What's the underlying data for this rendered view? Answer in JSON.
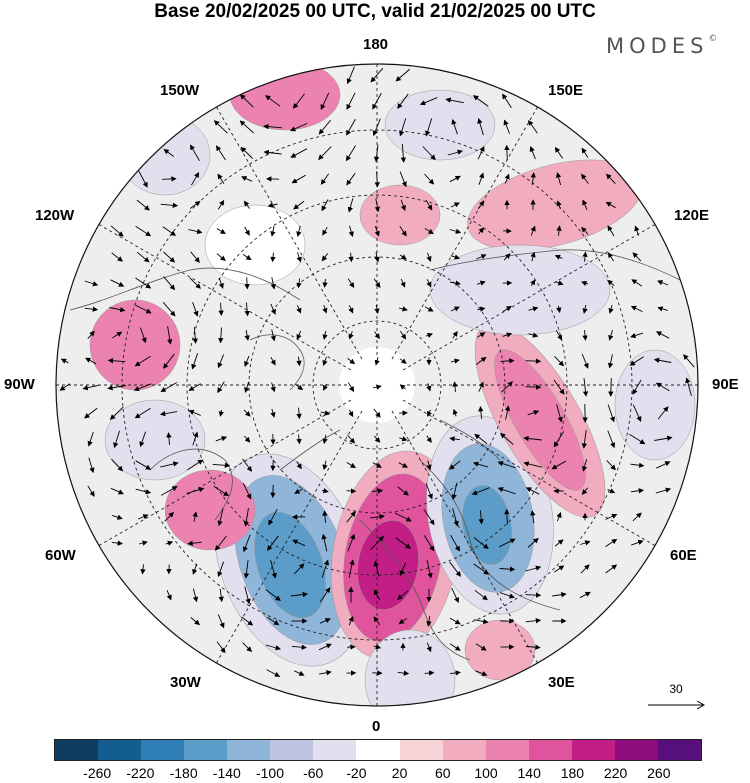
{
  "header": {
    "title": "Base 20/02/2025 00 UTC, valid 21/02/2025 00 UTC",
    "brand": "MODES",
    "brand_mark": "©"
  },
  "map": {
    "projection": "north-polar-stereographic",
    "longitude_labels": {
      "top": "180",
      "bottom": "0",
      "left": "90W",
      "right": "90E",
      "upper_left_1": "150W",
      "upper_left_2": "120W",
      "upper_right_1": "150E",
      "upper_right_2": "120E",
      "lower_left_1": "60W",
      "lower_left_2": "30W",
      "lower_right_1": "60E",
      "lower_right_2": "30E"
    },
    "reference_vector": {
      "label": "30"
    },
    "anomaly_centers": [
      {
        "name": "north-atlantic-europe-low",
        "sign": "negative",
        "level": -220
      },
      {
        "name": "scandinavia-high",
        "sign": "positive",
        "level": 240
      },
      {
        "name": "siberia-low",
        "sign": "negative",
        "level": -200
      },
      {
        "name": "central-asia-ridge",
        "sign": "positive",
        "level": 140
      },
      {
        "name": "canada-high",
        "sign": "positive",
        "level": 100
      },
      {
        "name": "aleutian-high",
        "sign": "positive",
        "level": 100
      }
    ]
  },
  "colorbar": {
    "labels": [
      "-260",
      "-220",
      "-180",
      "-140",
      "-100",
      "-60",
      "-20",
      "20",
      "60",
      "100",
      "140",
      "180",
      "220",
      "260"
    ],
    "colors": [
      "#0c3d5e",
      "#135d8f",
      "#2f7fb6",
      "#5b9dc8",
      "#8fb5d9",
      "#bcc4e1",
      "#e2e0ef",
      "#ffffff",
      "#f7d3d8",
      "#f2acc0",
      "#ec82af",
      "#e0539d",
      "#c21e86",
      "#8e0c7c",
      "#570f7e"
    ]
  }
}
